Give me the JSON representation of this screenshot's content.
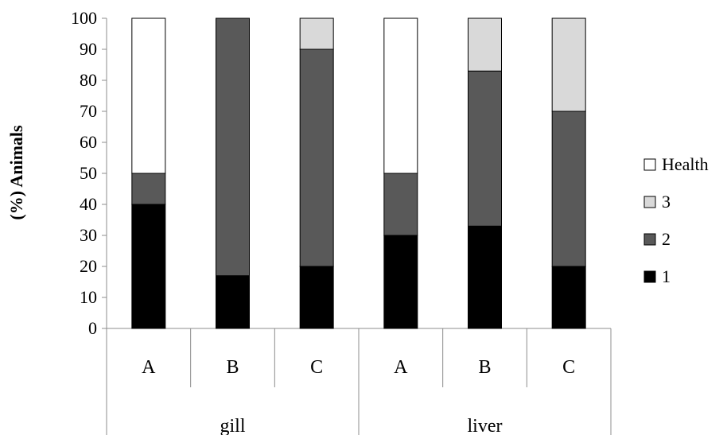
{
  "chart_data": {
    "type": "bar",
    "stacked": true,
    "ylabel": "(%) Animals",
    "xlabel": "",
    "ylim": [
      0,
      100
    ],
    "yticks": [
      0,
      10,
      20,
      30,
      40,
      50,
      60,
      70,
      80,
      90,
      100
    ],
    "grid": false,
    "legend_position": "right",
    "groups": [
      {
        "label": "gill",
        "categories": [
          "A",
          "B",
          "C"
        ]
      },
      {
        "label": "liver",
        "categories": [
          "A",
          "B",
          "C"
        ]
      }
    ],
    "categories": [
      "A",
      "B",
      "C",
      "A",
      "B",
      "C"
    ],
    "series": [
      {
        "name": "1",
        "color": "#000000",
        "values": [
          40,
          17,
          20,
          30,
          33,
          20
        ]
      },
      {
        "name": "2",
        "color": "#595959",
        "values": [
          10,
          83,
          70,
          20,
          50,
          50
        ]
      },
      {
        "name": "3",
        "color": "#d9d9d9",
        "values": [
          0,
          0,
          10,
          0,
          17,
          30
        ]
      },
      {
        "name": "Health",
        "color": "#ffffff",
        "values": [
          50,
          0,
          0,
          50,
          0,
          0
        ]
      }
    ],
    "legend_order": [
      "Health",
      "3",
      "2",
      "1"
    ]
  }
}
